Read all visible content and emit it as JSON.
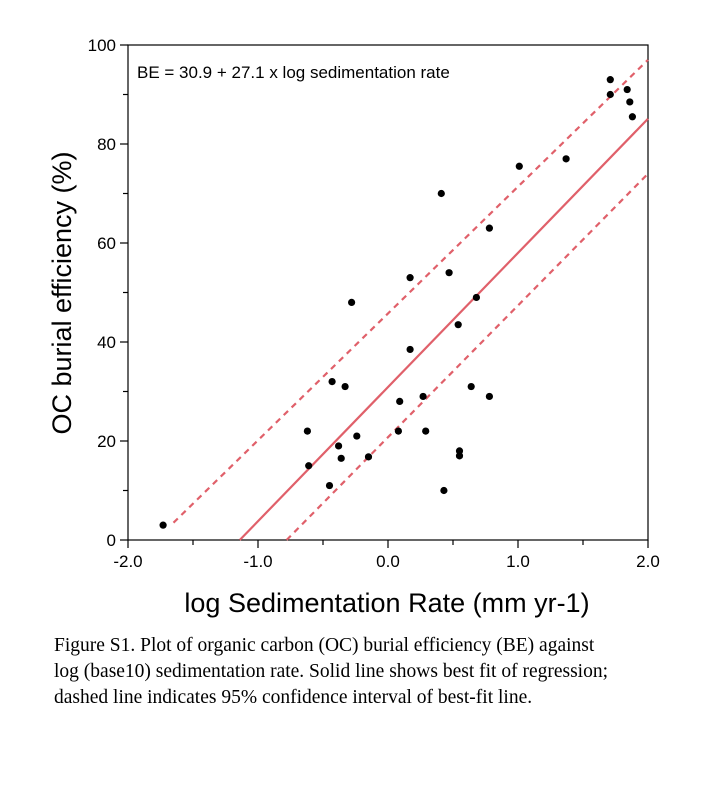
{
  "chart_data": {
    "type": "scatter",
    "xlabel": "log Sedimentation Rate (mm yr-1)",
    "ylabel": "OC burial efficiency (%)",
    "xlim": [
      -2.0,
      2.0
    ],
    "ylim": [
      0,
      100
    ],
    "x_ticks": [
      "-2.0",
      "-1.0",
      "0.0",
      "1.0",
      "2.0"
    ],
    "y_ticks": [
      "0",
      "20",
      "40",
      "60",
      "80",
      "100"
    ],
    "annotation": "BE = 30.9 + 27.1 x log sedimentation rate",
    "regression": {
      "intercept": 30.9,
      "slope": 27.1
    },
    "confidence_upper": [
      [
        -1.65,
        3.5
      ],
      [
        2.0,
        97.0
      ]
    ],
    "confidence_lower": [
      [
        -0.78,
        0
      ],
      [
        2.0,
        74.0
      ]
    ],
    "colors": {
      "fit_line": "#e0606a",
      "points": "#000000"
    },
    "points": [
      [
        -1.73,
        3
      ],
      [
        -0.62,
        22
      ],
      [
        -0.61,
        15
      ],
      [
        -0.45,
        11
      ],
      [
        -0.43,
        32
      ],
      [
        -0.38,
        19
      ],
      [
        -0.36,
        16.5
      ],
      [
        -0.33,
        31
      ],
      [
        -0.28,
        48
      ],
      [
        -0.24,
        21
      ],
      [
        -0.15,
        16.8
      ],
      [
        0.08,
        22
      ],
      [
        0.09,
        28
      ],
      [
        0.17,
        38.5
      ],
      [
        0.17,
        53
      ],
      [
        0.27,
        29
      ],
      [
        0.29,
        22
      ],
      [
        0.41,
        70
      ],
      [
        0.43,
        10
      ],
      [
        0.47,
        54
      ],
      [
        0.54,
        43.5
      ],
      [
        0.55,
        18
      ],
      [
        0.55,
        17
      ],
      [
        0.64,
        31
      ],
      [
        0.68,
        49
      ],
      [
        0.78,
        63
      ],
      [
        0.78,
        29
      ],
      [
        1.01,
        75.5
      ],
      [
        1.37,
        77
      ],
      [
        1.71,
        93
      ],
      [
        1.71,
        90
      ],
      [
        1.84,
        91
      ],
      [
        1.86,
        88.5
      ],
      [
        1.88,
        85.5
      ]
    ]
  },
  "caption": "Figure S1. Plot of organic carbon (OC) burial efficiency (BE) against log (base10) sedimentation rate. Solid line shows best fit of regression; dashed line indicates 95% confidence interval of best-fit line."
}
